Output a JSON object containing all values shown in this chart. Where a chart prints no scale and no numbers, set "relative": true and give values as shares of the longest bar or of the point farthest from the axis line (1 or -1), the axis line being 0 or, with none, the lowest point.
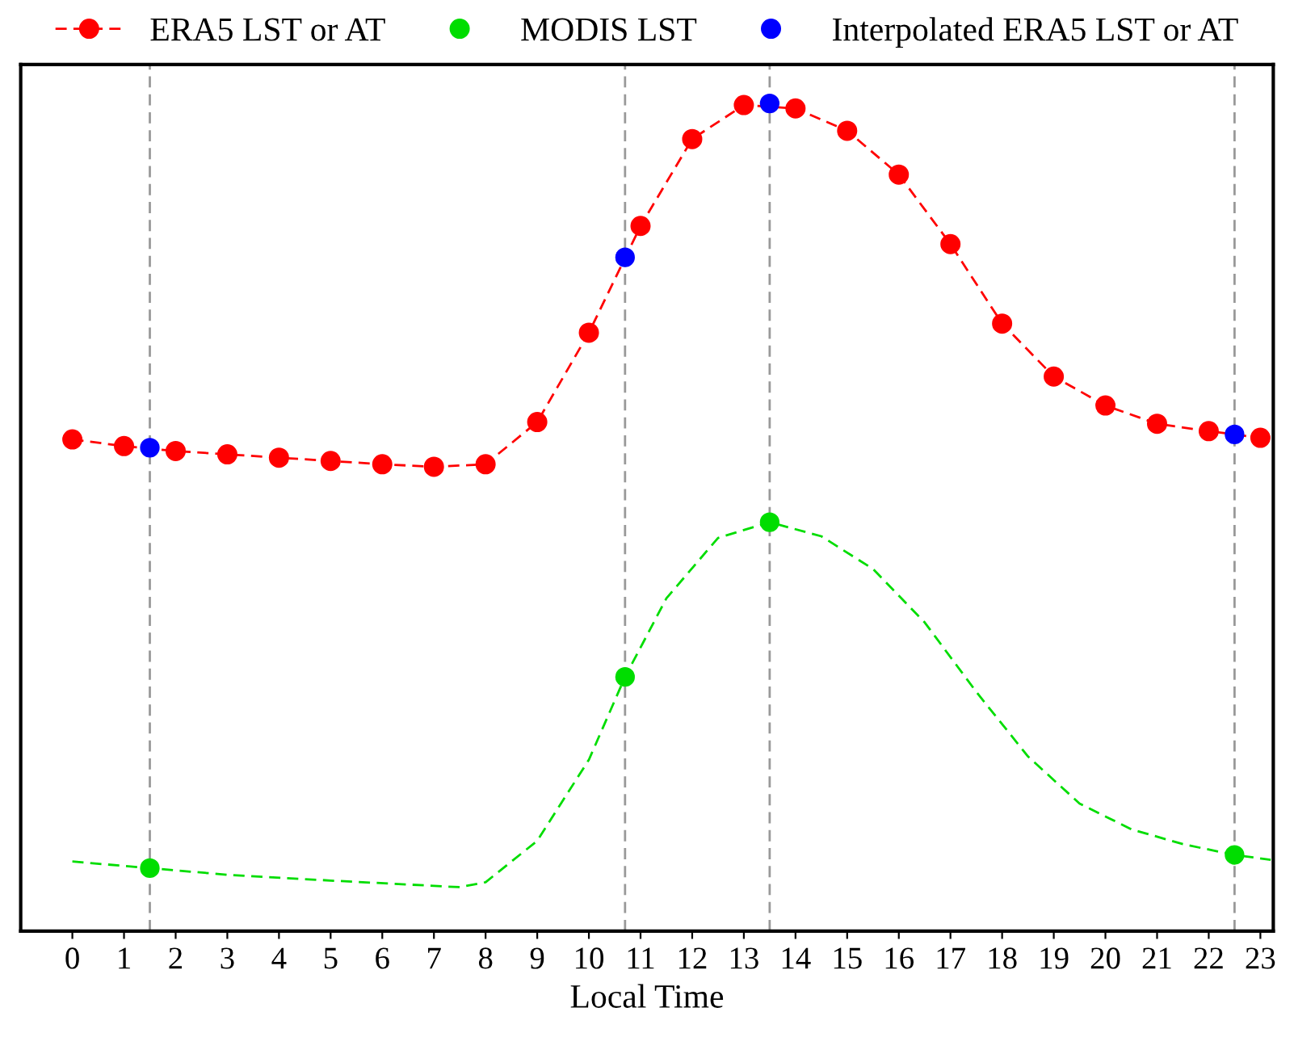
{
  "chart_data": {
    "type": "line",
    "relative": true,
    "xlabel": "Local Time",
    "xlim": [
      -1,
      23.25
    ],
    "xticks": [
      0,
      1,
      2,
      3,
      4,
      5,
      6,
      7,
      8,
      9,
      10,
      11,
      12,
      13,
      14,
      15,
      16,
      17,
      18,
      19,
      20,
      21,
      22,
      23
    ],
    "tick_labels": "x",
    "grid": false,
    "legend": "top",
    "series": [
      {
        "name": "ERA5 LST or AT",
        "color": "#ff0000",
        "marker": "circle",
        "line_style": "dashed",
        "x": [
          0,
          1,
          2,
          3,
          4,
          5,
          6,
          7,
          8,
          9,
          10,
          11,
          12,
          13,
          14,
          15,
          16,
          17,
          18,
          19,
          20,
          21,
          22,
          23
        ],
        "values": [
          0.594,
          0.586,
          0.58,
          0.576,
          0.572,
          0.568,
          0.564,
          0.561,
          0.564,
          0.615,
          0.723,
          0.852,
          0.957,
          0.998,
          0.994,
          0.967,
          0.914,
          0.83,
          0.734,
          0.67,
          0.635,
          0.613,
          0.604,
          0.596
        ]
      },
      {
        "name": "MODIS LST",
        "color": "#00dd00",
        "type": "scatter",
        "marker": "circle",
        "x": [
          1.5,
          10.7,
          13.5,
          22.5
        ],
        "values": [
          0.076,
          0.307,
          0.494,
          0.092
        ]
      },
      {
        "name": "Interpolated ERA5 LST or AT",
        "color": "#0000ff",
        "type": "scatter",
        "marker": "circle",
        "x": [
          1.5,
          10.7,
          13.5,
          22.5
        ],
        "values": [
          0.584,
          0.814,
          1.0,
          0.6
        ]
      },
      {
        "color": "#00dd00",
        "marker": "none",
        "line_style": "dashed",
        "x": [
          0,
          1.5,
          3,
          5,
          7.5,
          8,
          9,
          10,
          10.7,
          11.5,
          12.5,
          13.5,
          14.5,
          15.5,
          16.5,
          17.5,
          18.5,
          19.5,
          20.5,
          21.5,
          22.5,
          23.2
        ],
        "values": [
          0.084,
          0.076,
          0.068,
          0.061,
          0.053,
          0.059,
          0.109,
          0.207,
          0.307,
          0.402,
          0.475,
          0.494,
          0.477,
          0.4375,
          0.373,
          0.289,
          0.211,
          0.154,
          0.123,
          0.105,
          0.092,
          0.086
        ]
      }
    ],
    "ref_lines": [
      {
        "axis": "x",
        "value": 1.5,
        "color": "#999999",
        "line_style": "dashed"
      },
      {
        "axis": "x",
        "value": 10.7,
        "color": "#999999",
        "line_style": "dashed"
      },
      {
        "axis": "x",
        "value": 13.5,
        "color": "#999999",
        "line_style": "dashed"
      },
      {
        "axis": "x",
        "value": 22.5,
        "color": "#999999",
        "line_style": "dashed"
      }
    ]
  }
}
